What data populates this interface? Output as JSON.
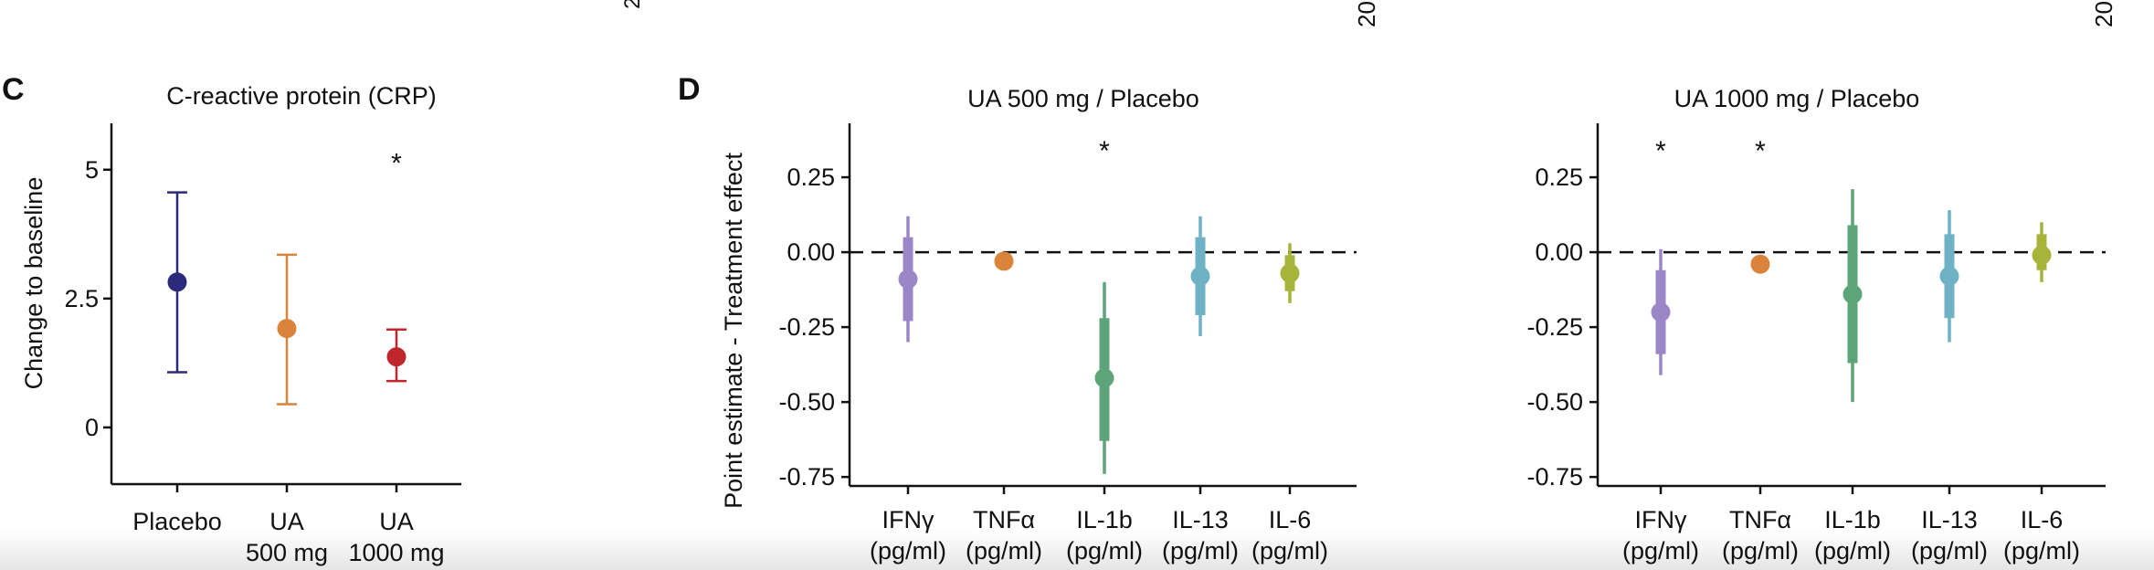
{
  "top_fragments": [
    "2",
    "20",
    "20"
  ],
  "chart_data": [
    {
      "panel_letter": "C",
      "type": "errorbar",
      "title": "C-reactive protein (CRP)",
      "ylabel": "Change to baseline",
      "ylim": [
        -1.1,
        5.9
      ],
      "yticks": [
        0,
        2.5,
        5
      ],
      "ytick_labels": [
        "0",
        "2.5",
        "5"
      ],
      "categories": [
        [
          "Placebo"
        ],
        [
          "UA",
          "500 mg"
        ],
        [
          "UA",
          "1000 mg"
        ]
      ],
      "points": [
        {
          "y": 2.82,
          "low": 1.07,
          "high": 4.56,
          "color": "#2b2a7b"
        },
        {
          "y": 1.92,
          "low": 0.45,
          "high": 3.35,
          "color": "#d9843a"
        },
        {
          "y": 1.37,
          "low": 0.9,
          "high": 1.9,
          "color": "#c0272d"
        }
      ],
      "significance": [
        {
          "index": 2,
          "label": "*",
          "y": 5.2
        }
      ],
      "grid": false
    },
    {
      "panel_letter": "D",
      "type": "forest",
      "title": "UA 500 mg / Placebo",
      "ylabel": "Point estimate - Treatment effect",
      "ylim": [
        -0.78,
        0.43
      ],
      "yticks": [
        0.25,
        0,
        -0.25,
        -0.5,
        -0.75
      ],
      "ytick_labels": [
        "0.25",
        "0.00",
        "-0.25",
        "-0.50",
        "-0.75"
      ],
      "reference_line": 0,
      "categories": [
        [
          "IFNγ",
          "(pg/ml)"
        ],
        [
          "TNFα",
          "(pg/ml)"
        ],
        [
          "IL-1b",
          "(pg/ml)"
        ],
        [
          "IL-13",
          "(pg/ml)"
        ],
        [
          "IL-6",
          "(pg/ml)"
        ]
      ],
      "series": [
        {
          "name": "IFNγ",
          "estimate": -0.09,
          "inner": [
            -0.23,
            0.05
          ],
          "outer": [
            -0.3,
            0.12
          ],
          "color": "#9b87c8"
        },
        {
          "name": "TNFα",
          "estimate": -0.03,
          "inner": [
            -0.05,
            -0.01
          ],
          "outer": [
            -0.06,
            0.0
          ],
          "color": "#d9843a"
        },
        {
          "name": "IL-1b",
          "estimate": -0.42,
          "inner": [
            -0.63,
            -0.22
          ],
          "outer": [
            -0.74,
            -0.1
          ],
          "color": "#5ea47a"
        },
        {
          "name": "IL-13",
          "estimate": -0.08,
          "inner": [
            -0.21,
            0.05
          ],
          "outer": [
            -0.28,
            0.12
          ],
          "color": "#6fb2c6"
        },
        {
          "name": "IL-6",
          "estimate": -0.07,
          "inner": [
            -0.13,
            -0.01
          ],
          "outer": [
            -0.17,
            0.03
          ],
          "color": "#a6b43a"
        }
      ],
      "significance": [
        {
          "index": 2,
          "label": "*"
        }
      ],
      "grid": false
    },
    {
      "panel_letter": "",
      "type": "forest",
      "title": "UA 1000 mg / Placebo",
      "ylabel": "",
      "ylim": [
        -0.78,
        0.43
      ],
      "yticks": [
        0.25,
        0,
        -0.25,
        -0.5,
        -0.75
      ],
      "ytick_labels": [
        "0.25",
        "0.00",
        "-0.25",
        "-0.50",
        "-0.75"
      ],
      "reference_line": 0,
      "categories": [
        [
          "IFNγ",
          "(pg/ml)"
        ],
        [
          "TNFα",
          "(pg/ml)"
        ],
        [
          "IL-1b",
          "(pg/ml)"
        ],
        [
          "IL-13",
          "(pg/ml)"
        ],
        [
          "IL-6",
          "(pg/ml)"
        ]
      ],
      "series": [
        {
          "name": "IFNγ",
          "estimate": -0.2,
          "inner": [
            -0.34,
            -0.06
          ],
          "outer": [
            -0.41,
            0.01
          ],
          "color": "#9b87c8"
        },
        {
          "name": "TNFα",
          "estimate": -0.04,
          "inner": [
            -0.06,
            -0.02
          ],
          "outer": [
            -0.07,
            -0.01
          ],
          "color": "#d9843a"
        },
        {
          "name": "IL-1b",
          "estimate": -0.14,
          "inner": [
            -0.37,
            0.09
          ],
          "outer": [
            -0.5,
            0.21
          ],
          "color": "#5ea47a"
        },
        {
          "name": "IL-13",
          "estimate": -0.08,
          "inner": [
            -0.22,
            0.06
          ],
          "outer": [
            -0.3,
            0.14
          ],
          "color": "#6fb2c6"
        },
        {
          "name": "IL-6",
          "estimate": -0.01,
          "inner": [
            -0.06,
            0.06
          ],
          "outer": [
            -0.1,
            0.1
          ],
          "color": "#a6b43a"
        }
      ],
      "significance": [
        {
          "index": 0,
          "label": "*"
        },
        {
          "index": 1,
          "label": "*"
        }
      ],
      "grid": false
    }
  ]
}
